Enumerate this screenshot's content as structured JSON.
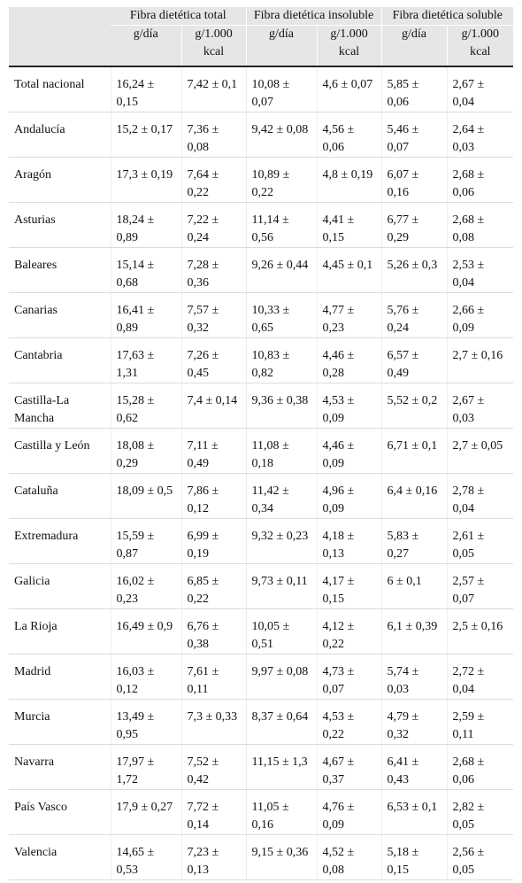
{
  "table": {
    "groups": [
      "Fibra dietética total",
      "Fibra dietética insoluble",
      "Fibra dietética soluble"
    ],
    "subheaders": [
      "g/día",
      "g/1.000 kcal",
      "g/día",
      "g/1.000 kcal",
      "g/día",
      "g/1.000 kcal"
    ],
    "rows": [
      [
        "Total nacional",
        "16,24 ± 0,15",
        "7,42 ± 0,1",
        "10,08 ± 0,07",
        "4,6 ± 0,07",
        "5,85 ± 0,06",
        "2,67 ± 0,04"
      ],
      [
        "Andalucía",
        "15,2 ± 0,17",
        "7,36 ± 0,08",
        "9,42 ± 0,08",
        "4,56 ± 0,06",
        "5,46 ± 0,07",
        "2,64 ± 0,03"
      ],
      [
        "Aragón",
        "17,3 ± 0,19",
        "7,64 ± 0,22",
        "10,89 ± 0,22",
        "4,8 ± 0,19",
        "6,07 ± 0,16",
        "2,68 ± 0,06"
      ],
      [
        "Asturias",
        "18,24 ± 0,89",
        "7,22 ± 0,24",
        "11,14 ± 0,56",
        "4,41 ± 0,15",
        "6,77 ± 0,29",
        "2,68 ± 0,08"
      ],
      [
        "Baleares",
        "15,14 ± 0,68",
        "7,28 ± 0,36",
        "9,26 ± 0,44",
        "4,45 ± 0,1",
        "5,26 ± 0,3",
        "2,53 ± 0,04"
      ],
      [
        "Canarias",
        "16,41 ± 0,89",
        "7,57 ± 0,32",
        "10,33 ± 0,65",
        "4,77 ± 0,23",
        "5,76 ± 0,24",
        "2,66 ± 0,09"
      ],
      [
        "Cantabria",
        "17,63 ± 1,31",
        "7,26 ± 0,45",
        "10,83 ± 0,82",
        "4,46 ± 0,28",
        "6,57 ± 0,49",
        "2,7 ± 0,16"
      ],
      [
        "Castilla-La Mancha",
        "15,28 ± 0,62",
        "7,4 ± 0,14",
        "9,36 ± 0,38",
        "4,53 ± 0,09",
        "5,52 ± 0,2",
        "2,67 ± 0,03"
      ],
      [
        "Castilla y León",
        "18,08 ± 0,29",
        "7,11 ± 0,49",
        "11,08 ± 0,18",
        "4,46 ± 0,09",
        "6,71 ± 0,1",
        "2,7 ± 0,05"
      ],
      [
        "Cataluña",
        "18,09 ± 0,5",
        "7,86 ± 0,12",
        "11,42 ± 0,34",
        "4,96 ± 0,09",
        "6,4 ± 0,16",
        "2,78 ± 0,04"
      ],
      [
        "Extremadura",
        "15,59 ± 0,87",
        "6,99 ± 0,19",
        "9,32 ± 0,23",
        "4,18 ± 0,13",
        "5,83 ± 0,27",
        "2,61 ± 0,05"
      ],
      [
        "Galicia",
        "16,02 ± 0,23",
        "6,85 ± 0,22",
        "9,73 ± 0,11",
        "4,17 ± 0,15",
        "6 ± 0,1",
        "2,57 ± 0,07"
      ],
      [
        "La Rioja",
        "16,49 ± 0,9",
        "6,76 ± 0,38",
        "10,05 ± 0,51",
        "4,12 ± 0,22",
        "6,1 ± 0,39",
        "2,5 ± 0,16"
      ],
      [
        "Madrid",
        "16,03 ± 0,12",
        "7,61 ± 0,11",
        "9,97 ± 0,08",
        "4,73 ± 0,07",
        "5,74 ± 0,03",
        "2,72 ± 0,04"
      ],
      [
        "Murcia",
        "13,49 ± 0,95",
        "7,3 ± 0,33",
        "8,37 ± 0,64",
        "4,53 ± 0,22",
        "4,79 ± 0,32",
        "2,59 ± 0,11"
      ],
      [
        "Navarra",
        "17,97 ± 1,72",
        "7,52 ± 0,42",
        "11,15 ± 1,3",
        "4,67 ± 0,37",
        "6,41 ± 0,43",
        "2,68 ± 0,06"
      ],
      [
        "País Vasco",
        "17,9 ± 0,27",
        "7,72 ± 0,14",
        "11,05 ± 0,16",
        "4,76 ± 0,09",
        "6,53 ± 0,1",
        "2,82 ± 0,05"
      ],
      [
        "Valencia",
        "14,65 ± 0,53",
        "7,23 ± 0,13",
        "9,15 ± 0,36",
        "4,52 ± 0,08",
        "5,18 ± 0,15",
        "2,56 ± 0,05"
      ]
    ]
  }
}
